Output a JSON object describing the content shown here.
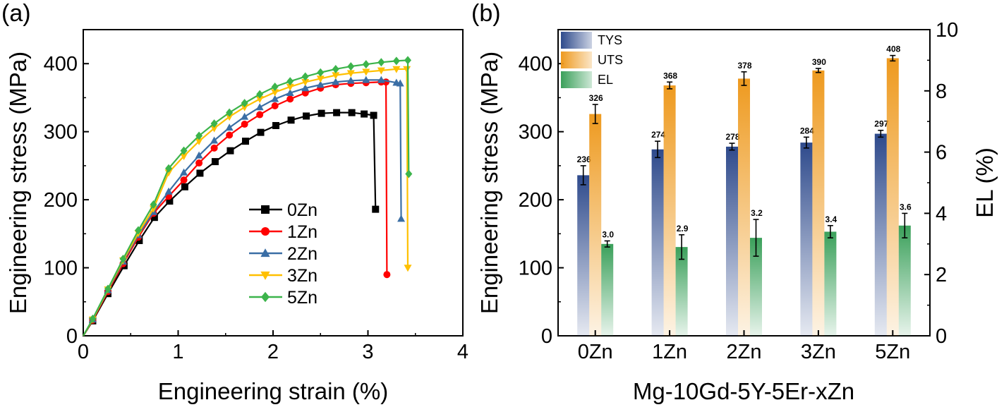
{
  "chart_data": [
    {
      "panel": "(a)",
      "type": "line",
      "xlabel": "Engineering strain (%)",
      "ylabel": "Engineering stress (MPa)",
      "xlim": [
        0,
        4
      ],
      "ylim": [
        0,
        450
      ],
      "x_ticks": [
        "0",
        "1",
        "2",
        "3",
        "4"
      ],
      "y_ticks": [
        "0",
        "100",
        "200",
        "300",
        "400"
      ],
      "legend_position": "bottom-right",
      "series": [
        {
          "name": "0Zn",
          "color": "#000000",
          "marker": "square",
          "points": [
            [
              0,
              0
            ],
            [
              0.1,
              22
            ],
            [
              0.26,
              62
            ],
            [
              0.43,
              103
            ],
            [
              0.59,
              140
            ],
            [
              0.75,
              174
            ],
            [
              0.91,
              198
            ],
            [
              1.07,
              219
            ],
            [
              1.23,
              239
            ],
            [
              1.39,
              256
            ],
            [
              1.55,
              272
            ],
            [
              1.71,
              286
            ],
            [
              1.87,
              299
            ],
            [
              2.03,
              309
            ],
            [
              2.19,
              317
            ],
            [
              2.35,
              323
            ],
            [
              2.51,
              327
            ],
            [
              2.67,
              328
            ],
            [
              2.83,
              328
            ],
            [
              2.96,
              326
            ],
            [
              3.06,
              324
            ],
            [
              3.08,
              186
            ]
          ]
        },
        {
          "name": "1Zn",
          "color": "#ff0000",
          "marker": "circle",
          "points": [
            [
              0,
              0
            ],
            [
              0.1,
              23
            ],
            [
              0.26,
              65
            ],
            [
              0.42,
              106
            ],
            [
              0.58,
              145
            ],
            [
              0.74,
              180
            ],
            [
              0.9,
              205
            ],
            [
              1.06,
              229
            ],
            [
              1.22,
              254
            ],
            [
              1.38,
              276
            ],
            [
              1.54,
              295
            ],
            [
              1.7,
              311
            ],
            [
              1.86,
              325
            ],
            [
              2.02,
              338
            ],
            [
              2.18,
              348
            ],
            [
              2.34,
              357
            ],
            [
              2.5,
              364
            ],
            [
              2.66,
              369
            ],
            [
              2.82,
              371
            ],
            [
              2.98,
              372
            ],
            [
              3.14,
              373
            ],
            [
              3.19,
              373
            ],
            [
              3.2,
              90
            ]
          ]
        },
        {
          "name": "2Zn",
          "color": "#3a6ea5",
          "marker": "triangle-up",
          "points": [
            [
              0,
              0
            ],
            [
              0.1,
              24
            ],
            [
              0.26,
              67
            ],
            [
              0.42,
              109
            ],
            [
              0.58,
              148
            ],
            [
              0.74,
              182
            ],
            [
              0.9,
              212
            ],
            [
              1.06,
              240
            ],
            [
              1.22,
              265
            ],
            [
              1.38,
              287
            ],
            [
              1.54,
              306
            ],
            [
              1.7,
              322
            ],
            [
              1.86,
              336
            ],
            [
              2.02,
              348
            ],
            [
              2.18,
              357
            ],
            [
              2.34,
              364
            ],
            [
              2.5,
              369
            ],
            [
              2.66,
              373
            ],
            [
              2.82,
              375
            ],
            [
              2.98,
              376
            ],
            [
              3.14,
              376
            ],
            [
              3.3,
              372
            ],
            [
              3.34,
              371
            ],
            [
              3.35,
              172
            ]
          ]
        },
        {
          "name": "3Zn",
          "color": "#ffc000",
          "marker": "triangle-down",
          "points": [
            [
              0,
              0
            ],
            [
              0.1,
              24
            ],
            [
              0.26,
              68
            ],
            [
              0.42,
              111
            ],
            [
              0.58,
              151
            ],
            [
              0.74,
              187
            ],
            [
              0.9,
              240
            ],
            [
              1.06,
              264
            ],
            [
              1.22,
              286
            ],
            [
              1.38,
              305
            ],
            [
              1.54,
              322
            ],
            [
              1.7,
              336
            ],
            [
              1.86,
              348
            ],
            [
              2.02,
              358
            ],
            [
              2.18,
              366
            ],
            [
              2.34,
              373
            ],
            [
              2.5,
              378
            ],
            [
              2.66,
              383
            ],
            [
              2.82,
              386
            ],
            [
              2.98,
              388
            ],
            [
              3.14,
              390
            ],
            [
              3.3,
              392
            ],
            [
              3.41,
              392
            ],
            [
              3.42,
              100
            ]
          ]
        },
        {
          "name": "5Zn",
          "color": "#3cb44b",
          "marker": "diamond",
          "points": [
            [
              0,
              0
            ],
            [
              0.1,
              25
            ],
            [
              0.26,
              69
            ],
            [
              0.42,
              113
            ],
            [
              0.58,
              155
            ],
            [
              0.74,
              193
            ],
            [
              0.9,
              246
            ],
            [
              1.06,
              272
            ],
            [
              1.22,
              294
            ],
            [
              1.38,
              312
            ],
            [
              1.54,
              328
            ],
            [
              1.7,
              342
            ],
            [
              1.86,
              355
            ],
            [
              2.02,
              366
            ],
            [
              2.18,
              374
            ],
            [
              2.34,
              381
            ],
            [
              2.5,
              387
            ],
            [
              2.66,
              392
            ],
            [
              2.82,
              396
            ],
            [
              2.98,
              399
            ],
            [
              3.14,
              402
            ],
            [
              3.3,
              404
            ],
            [
              3.42,
              405
            ],
            [
              3.43,
              238
            ]
          ]
        }
      ]
    },
    {
      "panel": "(b)",
      "type": "bar",
      "xlabel": "Mg-10Gd-5Y-5Er-xZn",
      "ylabel": "Engineering stress (MPa)",
      "y2label": "EL (%)",
      "ylim": [
        0,
        450
      ],
      "y2lim": [
        0,
        10
      ],
      "y_ticks": [
        "0",
        "100",
        "200",
        "300",
        "400"
      ],
      "y2_ticks": [
        "0",
        "2",
        "4",
        "6",
        "8",
        "10"
      ],
      "legend_position": "top-left",
      "categories": [
        "0Zn",
        "1Zn",
        "2Zn",
        "3Zn",
        "5Zn"
      ],
      "series": [
        {
          "name": "TYS",
          "axis": "left",
          "color": "#2e4a8c",
          "values": [
            236,
            274,
            278,
            284,
            297
          ],
          "errors": [
            14,
            12,
            5,
            8,
            5
          ],
          "labels": [
            "236",
            "274",
            "278",
            "284",
            "297"
          ]
        },
        {
          "name": "UTS",
          "axis": "left",
          "color": "#ee9a1f",
          "values": [
            326,
            368,
            378,
            390,
            408
          ],
          "errors": [
            14,
            5,
            10,
            3,
            4
          ],
          "labels": [
            "326",
            "368",
            "378",
            "390",
            "408"
          ]
        },
        {
          "name": "EL",
          "axis": "right",
          "color": "#3aa05a",
          "values": [
            3.0,
            2.9,
            3.2,
            3.4,
            3.6
          ],
          "errors": [
            0.1,
            0.4,
            0.6,
            0.2,
            0.4
          ],
          "labels": [
            "3.0",
            "2.9",
            "3.2",
            "3.4",
            "3.6"
          ]
        }
      ]
    }
  ]
}
